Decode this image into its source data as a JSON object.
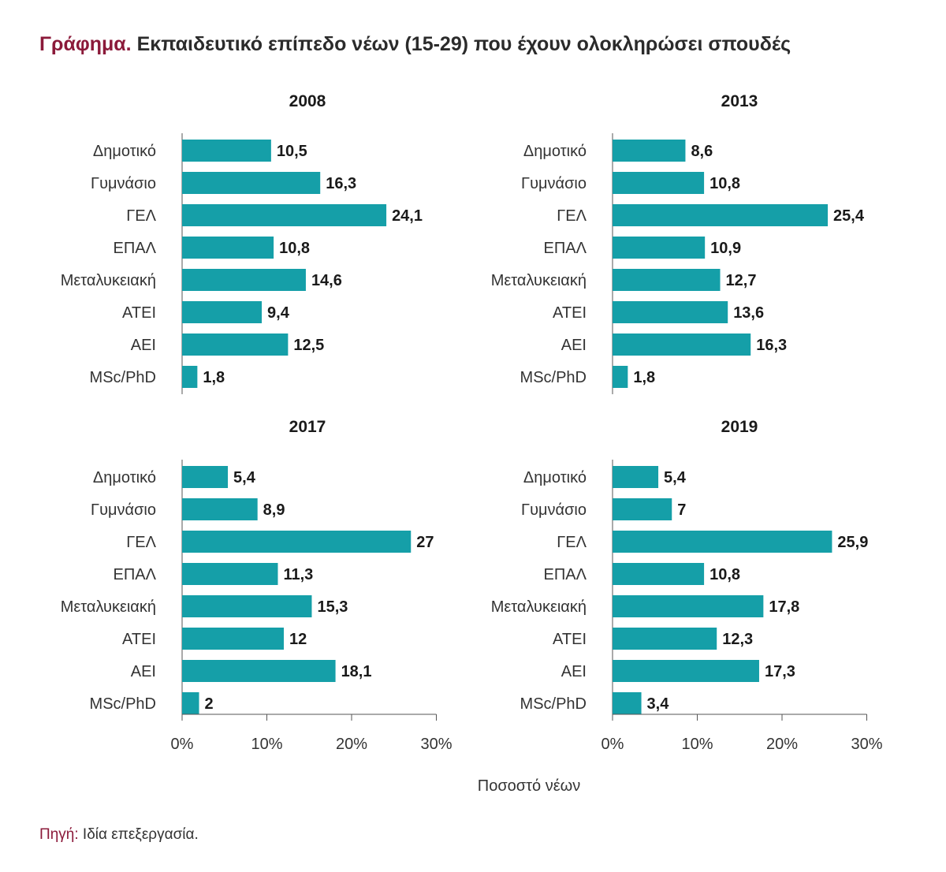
{
  "title": {
    "prefix": "Γράφημα.",
    "text": "Εκπαιδευτικό επίπεδο νέων (15-29) που έχουν ολοκληρώσει σπουδές"
  },
  "source": {
    "label": "Πηγή:",
    "text": "Ιδία επεξεργασία."
  },
  "colors": {
    "bar": "#159fa8",
    "title_accent": "#8b1a3a",
    "axis": "#555555"
  },
  "chart_data": {
    "type": "bar",
    "orientation": "horizontal",
    "xlabel": "Ποσοστό νέων",
    "xlim": [
      0,
      30
    ],
    "x_ticks": [
      "0%",
      "10%",
      "20%",
      "30%"
    ],
    "grid": false,
    "categories": [
      "Δημοτικό",
      "Γυμνάσιο",
      "ΓΕΛ",
      "ΕΠΑΛ",
      "Μεταλυκειακή",
      "ΑΤΕΙ",
      "ΑΕΙ",
      "MSc/PhD"
    ],
    "panels": [
      {
        "title": "2008",
        "values": [
          10.5,
          16.3,
          24.1,
          10.8,
          14.6,
          9.4,
          12.5,
          1.8
        ],
        "labels": [
          "10,5",
          "16,3",
          "24,1",
          "10,8",
          "14,6",
          "9,4",
          "12,5",
          "1,8"
        ]
      },
      {
        "title": "2013",
        "values": [
          8.6,
          10.8,
          25.4,
          10.9,
          12.7,
          13.6,
          16.3,
          1.8
        ],
        "labels": [
          "8,6",
          "10,8",
          "25,4",
          "10,9",
          "12,7",
          "13,6",
          "16,3",
          "1,8"
        ]
      },
      {
        "title": "2017",
        "values": [
          5.4,
          8.9,
          27,
          11.3,
          15.3,
          12,
          18.1,
          2
        ],
        "labels": [
          "5,4",
          "8,9",
          "27",
          "11,3",
          "15,3",
          "12",
          "18,1",
          "2"
        ]
      },
      {
        "title": "2019",
        "values": [
          5.4,
          7,
          25.9,
          10.8,
          17.8,
          12.3,
          17.3,
          3.4
        ],
        "labels": [
          "5,4",
          "7",
          "25,9",
          "10,8",
          "17,8",
          "12,3",
          "17,3",
          "3,4"
        ]
      }
    ]
  }
}
